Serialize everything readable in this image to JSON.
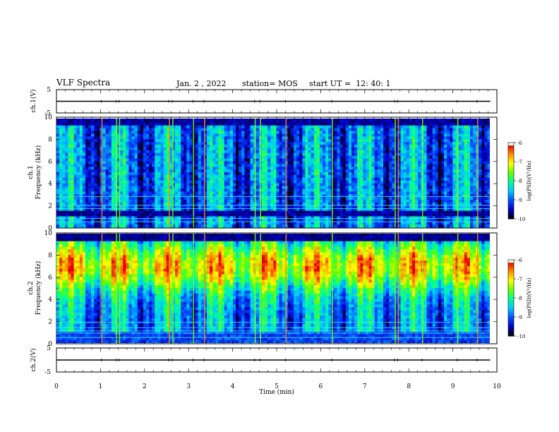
{
  "header": {
    "title": "VLF Spectra",
    "date": "Jan. 2 , 2022",
    "station": "station= MOS",
    "start": "start UT =  12: 40: 1"
  },
  "chart_data": {
    "type": "heatmap",
    "x_axis": {
      "label": "Time (min)",
      "range": [
        0,
        10
      ],
      "ticks": [
        0,
        1,
        2,
        3,
        4,
        5,
        6,
        7,
        8,
        9,
        10
      ]
    },
    "panels": [
      {
        "id": "ch1-waveform",
        "ylabel": "ch.1(V)",
        "yticks": [
          5,
          -5
        ],
        "ylim": [
          -5,
          5
        ],
        "trace_value": 0
      },
      {
        "id": "ch1-spectrogram",
        "ylabel_top": "ch.1",
        "ylabel": "Frequency (kHz)",
        "ylim": [
          0,
          10
        ],
        "yticks": [
          0,
          2,
          4,
          6,
          8,
          10
        ],
        "colorbar": {
          "label": "log(PSD)(V²/Hz)",
          "range": [
            -10,
            -6
          ],
          "ticks": [
            -6,
            -7,
            -8,
            -9,
            -10
          ]
        }
      },
      {
        "id": "ch2-spectrogram",
        "ylabel_top": "ch.2",
        "ylabel": "Frequency (kHz)",
        "ylim": [
          0,
          10
        ],
        "yticks": [
          0,
          2,
          4,
          6,
          8,
          10
        ],
        "colorbar": {
          "label": "log(PSD)(V²/Hz)",
          "range": [
            -10,
            -6
          ],
          "ticks": [
            -6,
            -7,
            -8,
            -9,
            -10
          ]
        }
      },
      {
        "id": "ch2-waveform",
        "ylabel": "ch.2(V)",
        "yticks": [
          5,
          -5
        ],
        "ylim": [
          -5,
          5
        ],
        "trace_value": 0
      }
    ],
    "colormap": [
      "#000000",
      "#0000c8",
      "#0050ff",
      "#00c8ff",
      "#00ff96",
      "#64ff00",
      "#ffff00",
      "#ff8c00",
      "#e60000",
      "#ffffff"
    ],
    "spectrogram_duration_min": 9.85,
    "sferic_times_min": [
      1.02,
      1.35,
      1.42,
      2.55,
      2.63,
      3.1,
      3.35,
      4.5,
      4.62,
      5.2,
      6.25,
      7.68,
      7.75,
      8.3,
      9.1,
      9.55
    ],
    "ch1_tonal_kHz": [
      0.5,
      0.8,
      1.7,
      2.0,
      2.8
    ],
    "ch2_tonal_kHz": [
      0.5,
      0.9,
      1.1,
      1.4,
      1.9
    ]
  }
}
